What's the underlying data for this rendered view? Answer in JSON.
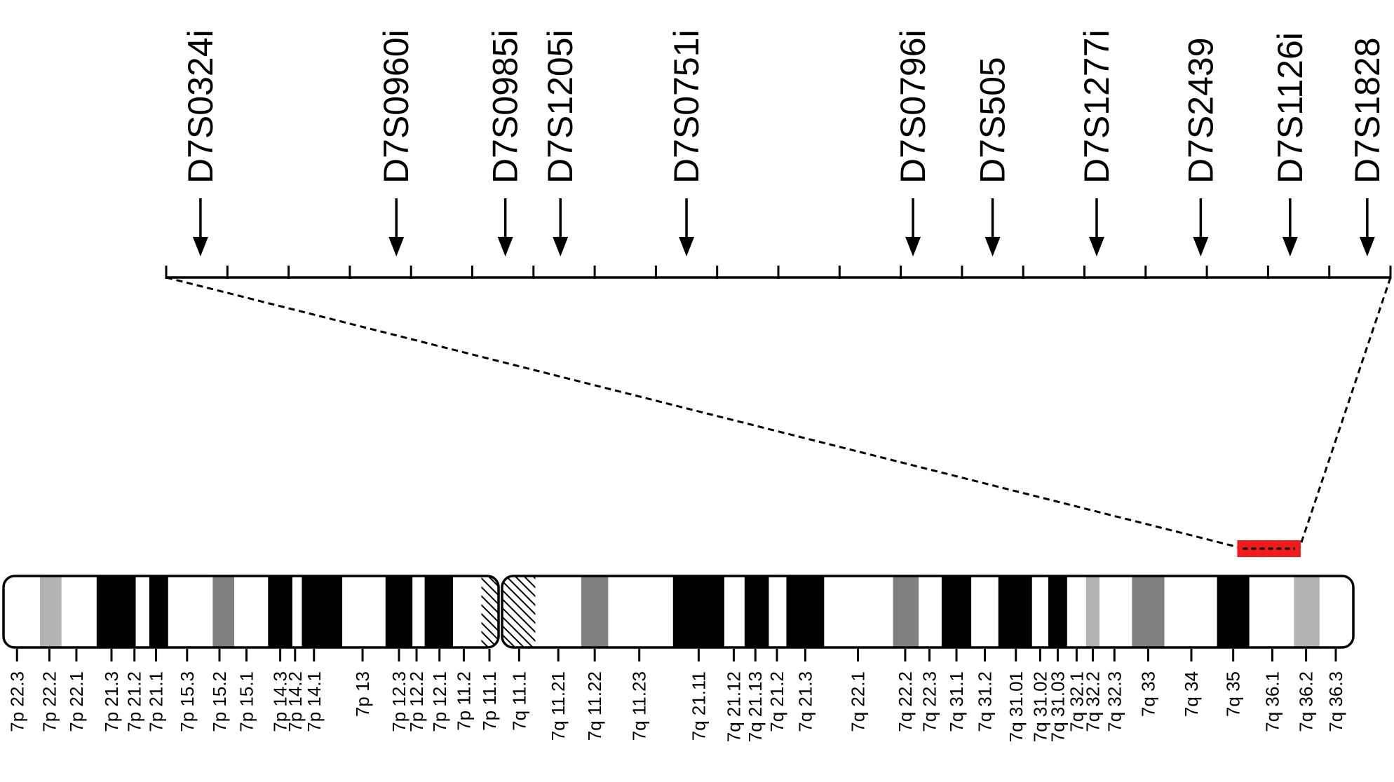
{
  "markers": [
    {
      "label": "D7S0324i",
      "pos": 0.028
    },
    {
      "label": "D7S0960i",
      "pos": 0.188
    },
    {
      "label": "D7S0985i",
      "pos": 0.277
    },
    {
      "label": "D7S1205i",
      "pos": 0.322
    },
    {
      "label": "D7S0751i",
      "pos": 0.425
    },
    {
      "label": "D7S0796i",
      "pos": 0.61
    },
    {
      "label": "D7S505",
      "pos": 0.675
    },
    {
      "label": "D7S1277i",
      "pos": 0.76
    },
    {
      "label": "D7S2439",
      "pos": 0.845
    },
    {
      "label": "D7S1126i",
      "pos": 0.918
    },
    {
      "label": "D7S1828",
      "pos": 0.981
    }
  ],
  "scale_ticks": 20,
  "highlight_region": {
    "start": 0.914,
    "end": 0.961,
    "color": "#ee1c1c"
  },
  "bands": [
    {
      "name": "7p 22.3",
      "start": 0.0,
      "end": 0.027,
      "stain": "white"
    },
    {
      "name": "7p 22.2",
      "start": 0.027,
      "end": 0.043,
      "stain": "gray1"
    },
    {
      "name": "7p 22.1",
      "start": 0.043,
      "end": 0.069,
      "stain": "white"
    },
    {
      "name": "7p 21.3",
      "start": 0.069,
      "end": 0.098,
      "stain": "black"
    },
    {
      "name": "7p 21.2",
      "start": 0.098,
      "end": 0.108,
      "stain": "white"
    },
    {
      "name": "7p 21.1",
      "start": 0.108,
      "end": 0.122,
      "stain": "black"
    },
    {
      "name": "7p 15.3",
      "start": 0.122,
      "end": 0.155,
      "stain": "white"
    },
    {
      "name": "7p 15.2",
      "start": 0.155,
      "end": 0.171,
      "stain": "gray2"
    },
    {
      "name": "7p 15.1",
      "start": 0.171,
      "end": 0.196,
      "stain": "white"
    },
    {
      "name": "7p 14.3",
      "start": 0.196,
      "end": 0.214,
      "stain": "black"
    },
    {
      "name": "7p 14.2",
      "start": 0.214,
      "end": 0.221,
      "stain": "white"
    },
    {
      "name": "7p 14.1",
      "start": 0.221,
      "end": 0.251,
      "stain": "black"
    },
    {
      "name": "7p 13",
      "start": 0.251,
      "end": 0.283,
      "stain": "white"
    },
    {
      "name": "7p 12.3",
      "start": 0.283,
      "end": 0.303,
      "stain": "black"
    },
    {
      "name": "7p 12.2",
      "start": 0.303,
      "end": 0.312,
      "stain": "white"
    },
    {
      "name": "7p 12.1",
      "start": 0.312,
      "end": 0.333,
      "stain": "black"
    },
    {
      "name": "7p 11.2",
      "start": 0.333,
      "end": 0.354,
      "stain": "white"
    },
    {
      "name": "7p 11.1",
      "start": 0.354,
      "end": 0.368,
      "stain": "acen"
    },
    {
      "name": "7q 11.1",
      "start": 0.37,
      "end": 0.394,
      "stain": "acen"
    },
    {
      "name": "7q 11.21",
      "start": 0.394,
      "end": 0.428,
      "stain": "white"
    },
    {
      "name": "7q 11.22",
      "start": 0.428,
      "end": 0.448,
      "stain": "gray2"
    },
    {
      "name": "7q 11.23",
      "start": 0.448,
      "end": 0.496,
      "stain": "white"
    },
    {
      "name": "7q 21.11",
      "start": 0.496,
      "end": 0.534,
      "stain": "black"
    },
    {
      "name": "7q 21.12",
      "start": 0.534,
      "end": 0.549,
      "stain": "white"
    },
    {
      "name": "7q 21.13",
      "start": 0.549,
      "end": 0.567,
      "stain": "black"
    },
    {
      "name": "7q 21.2",
      "start": 0.567,
      "end": 0.58,
      "stain": "white"
    },
    {
      "name": "7q 21.3",
      "start": 0.58,
      "end": 0.608,
      "stain": "black"
    },
    {
      "name": "7q 22.1",
      "start": 0.608,
      "end": 0.659,
      "stain": "white"
    },
    {
      "name": "7q 22.2",
      "start": 0.659,
      "end": 0.678,
      "stain": "gray2"
    },
    {
      "name": "7q 22.3",
      "start": 0.678,
      "end": 0.695,
      "stain": "white"
    },
    {
      "name": "7q 31.1",
      "start": 0.695,
      "end": 0.717,
      "stain": "black"
    },
    {
      "name": "7q 31.2",
      "start": 0.717,
      "end": 0.737,
      "stain": "white"
    },
    {
      "name": "7q 31.01",
      "start": 0.737,
      "end": 0.762,
      "stain": "black"
    },
    {
      "name": "7q 31.02",
      "start": 0.762,
      "end": 0.774,
      "stain": "white"
    },
    {
      "name": "7q 31.03",
      "start": 0.774,
      "end": 0.788,
      "stain": "black"
    },
    {
      "name": "7q 32.1",
      "start": 0.788,
      "end": 0.802,
      "stain": "white"
    },
    {
      "name": "7q 32.2",
      "start": 0.802,
      "end": 0.812,
      "stain": "gray1"
    },
    {
      "name": "7q 32.3",
      "start": 0.812,
      "end": 0.836,
      "stain": "white"
    },
    {
      "name": "7q 33",
      "start": 0.836,
      "end": 0.86,
      "stain": "gray2"
    },
    {
      "name": "7q 34",
      "start": 0.86,
      "end": 0.899,
      "stain": "white"
    },
    {
      "name": "7q 35",
      "start": 0.899,
      "end": 0.923,
      "stain": "black"
    },
    {
      "name": "7q 36.1",
      "start": 0.923,
      "end": 0.956,
      "stain": "white"
    },
    {
      "name": "7q 36.2",
      "start": 0.956,
      "end": 0.975,
      "stain": "gray1"
    },
    {
      "name": "7q 36.3",
      "start": 0.975,
      "end": 1.0,
      "stain": "white"
    }
  ],
  "band_label_positions": [
    0.01,
    0.034,
    0.054,
    0.08,
    0.097,
    0.113,
    0.136,
    0.16,
    0.18,
    0.205,
    0.216,
    0.23,
    0.266,
    0.293,
    0.306,
    0.323,
    0.341,
    0.36,
    0.382,
    0.411,
    0.438,
    0.471,
    0.515,
    0.541,
    0.557,
    0.573,
    0.594,
    0.633,
    0.668,
    0.686,
    0.706,
    0.727,
    0.75,
    0.768,
    0.781,
    0.795,
    0.807,
    0.823,
    0.848,
    0.88,
    0.911,
    0.94,
    0.965,
    0.987
  ],
  "colors": {
    "white": "#ffffff",
    "black": "#000000",
    "gray1": "#b3b3b3",
    "gray2": "#808080"
  }
}
